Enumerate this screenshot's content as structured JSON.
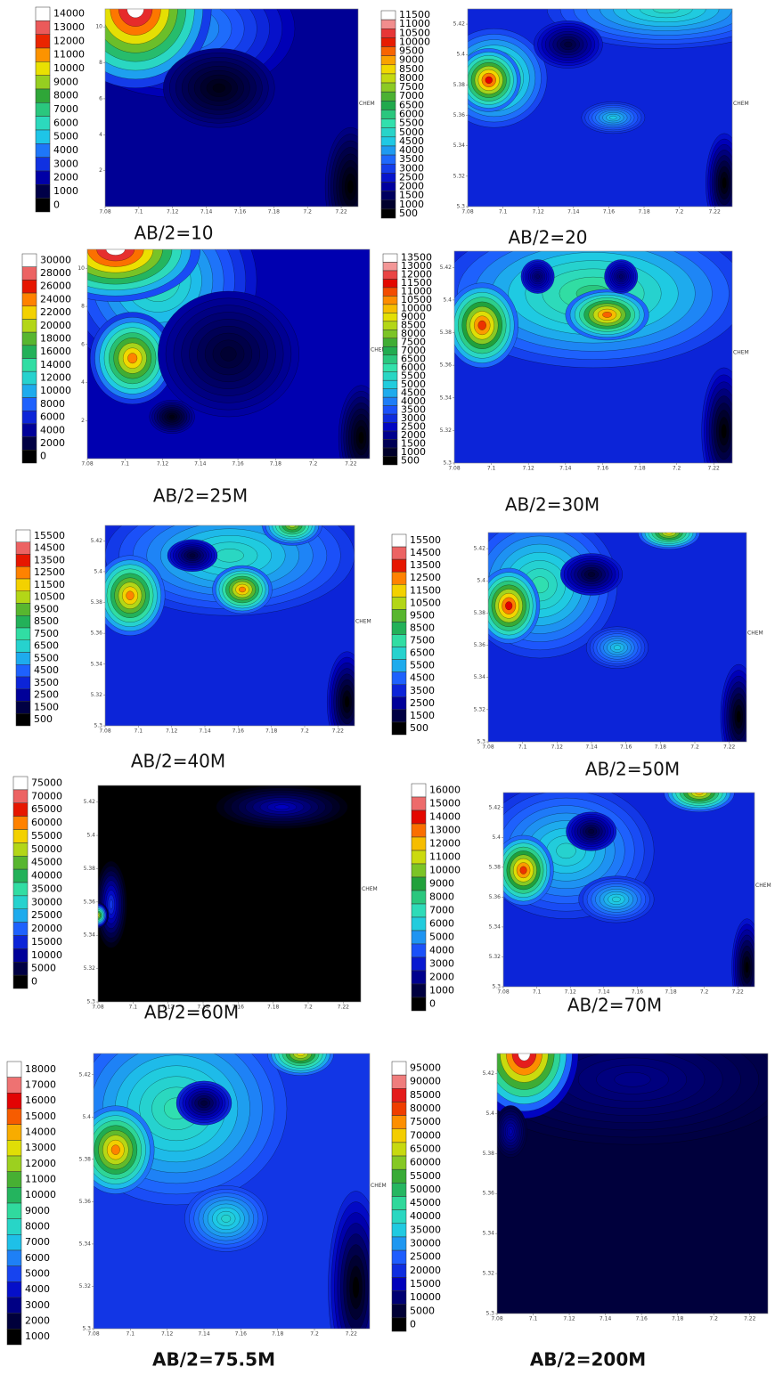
{
  "chart_data": [
    {
      "type": "contour",
      "title": "AB/2=10",
      "levels": [
        14000,
        13000,
        12000,
        11000,
        10000,
        9000,
        8000,
        7000,
        6000,
        5000,
        4000,
        3000,
        2000,
        1000,
        0
      ],
      "xlim": [
        7.08,
        7.23
      ],
      "xticks": [
        7.08,
        7.1,
        7.12,
        7.14,
        7.16,
        7.18,
        7.2,
        7.22
      ],
      "ylim": [
        0,
        11
      ],
      "yticks": [
        2,
        4,
        6,
        8,
        10
      ],
      "annotations": [
        "CHEM"
      ]
    },
    {
      "type": "contour",
      "title": "AB/2=20",
      "levels": [
        11500,
        11000,
        10500,
        10000,
        9500,
        9000,
        8500,
        8000,
        7500,
        7000,
        6500,
        6000,
        5500,
        5000,
        4500,
        4000,
        3500,
        3000,
        2500,
        2000,
        1500,
        1000,
        500
      ],
      "xlim": [
        7.08,
        7.23
      ],
      "xticks": [
        7.08,
        7.1,
        7.12,
        7.14,
        7.16,
        7.18,
        7.2,
        7.22
      ],
      "ylim": [
        5.3,
        5.43
      ],
      "yticks": [
        5.3,
        5.32,
        5.34,
        5.36,
        5.38,
        5.4,
        5.42
      ],
      "annotations": [
        "CHEM"
      ]
    },
    {
      "type": "contour",
      "title": "AB/2=25M",
      "levels": [
        30000,
        28000,
        26000,
        24000,
        22000,
        20000,
        18000,
        16000,
        14000,
        12000,
        10000,
        8000,
        6000,
        4000,
        2000,
        0
      ],
      "xlim": [
        7.08,
        7.23
      ],
      "xticks": [
        7.08,
        7.1,
        7.12,
        7.14,
        7.16,
        7.18,
        7.2,
        7.22
      ],
      "ylim": [
        0,
        11
      ],
      "yticks": [
        2,
        4,
        6,
        8,
        10
      ],
      "annotations": [
        "CHEM"
      ]
    },
    {
      "type": "contour",
      "title": "AB/2=30M",
      "levels": [
        13500,
        13000,
        12000,
        11500,
        11000,
        10500,
        10000,
        9000,
        8500,
        8000,
        7500,
        7000,
        6500,
        6000,
        5500,
        5000,
        4500,
        4000,
        3500,
        3000,
        2500,
        2000,
        1500,
        1000,
        500
      ],
      "xlim": [
        7.08,
        7.23
      ],
      "xticks": [
        7.08,
        7.1,
        7.12,
        7.14,
        7.16,
        7.18,
        7.2,
        7.22
      ],
      "ylim": [
        5.3,
        5.43
      ],
      "yticks": [
        5.3,
        5.32,
        5.34,
        5.36,
        5.38,
        5.4,
        5.42
      ],
      "annotations": [
        "CHEM"
      ]
    },
    {
      "type": "contour",
      "title": "AB/2=40M",
      "levels": [
        15500,
        14500,
        13500,
        12500,
        11500,
        10500,
        9500,
        8500,
        7500,
        6500,
        5500,
        4500,
        3500,
        2500,
        1500,
        500
      ],
      "xlim": [
        7.08,
        7.23
      ],
      "xticks": [
        7.08,
        7.1,
        7.12,
        7.14,
        7.16,
        7.18,
        7.2,
        7.22
      ],
      "ylim": [
        5.3,
        5.43
      ],
      "yticks": [
        5.3,
        5.32,
        5.34,
        5.36,
        5.38,
        5.4,
        5.42
      ],
      "annotations": [
        "CHEM"
      ]
    },
    {
      "type": "contour",
      "title": "AB/2=50M",
      "levels": [
        15500,
        14500,
        13500,
        12500,
        11500,
        10500,
        9500,
        8500,
        7500,
        6500,
        5500,
        4500,
        3500,
        2500,
        1500,
        500
      ],
      "xlim": [
        7.08,
        7.23
      ],
      "xticks": [
        7.08,
        7.1,
        7.12,
        7.14,
        7.16,
        7.18,
        7.2,
        7.22
      ],
      "ylim": [
        5.3,
        5.43
      ],
      "yticks": [
        5.3,
        5.32,
        5.34,
        5.36,
        5.38,
        5.4,
        5.42
      ],
      "annotations": [
        "CHEM"
      ]
    },
    {
      "type": "contour",
      "title": "AB/2=60M",
      "levels": [
        75000,
        70000,
        65000,
        60000,
        55000,
        50000,
        45000,
        40000,
        35000,
        30000,
        25000,
        20000,
        15000,
        10000,
        5000,
        0
      ],
      "xlim": [
        7.08,
        7.23
      ],
      "xticks": [
        7.08,
        7.1,
        7.12,
        7.14,
        7.16,
        7.18,
        7.2,
        7.22
      ],
      "ylim": [
        5.3,
        5.43
      ],
      "yticks": [
        5.3,
        5.32,
        5.34,
        5.36,
        5.38,
        5.4,
        5.42
      ],
      "annotations": [
        "CHEM"
      ]
    },
    {
      "type": "contour",
      "title": "AB/2=70M",
      "levels": [
        16000,
        15000,
        14000,
        13000,
        12000,
        11000,
        10000,
        9000,
        8000,
        7000,
        6000,
        5000,
        4000,
        3000,
        2000,
        1000,
        0
      ],
      "xlim": [
        7.08,
        7.23
      ],
      "xticks": [
        7.08,
        7.1,
        7.12,
        7.14,
        7.16,
        7.18,
        7.2,
        7.22
      ],
      "ylim": [
        5.3,
        5.43
      ],
      "yticks": [
        5.3,
        5.32,
        5.34,
        5.36,
        5.38,
        5.4,
        5.42
      ],
      "annotations": [
        "CHEM"
      ]
    },
    {
      "type": "contour",
      "title": "AB/2=75.5M",
      "levels": [
        18000,
        17000,
        16000,
        15000,
        14000,
        13000,
        12000,
        11000,
        10000,
        9000,
        8000,
        7000,
        6000,
        5000,
        4000,
        3000,
        2000,
        1000
      ],
      "xlim": [
        7.08,
        7.23
      ],
      "xticks": [
        7.08,
        7.1,
        7.12,
        7.14,
        7.16,
        7.18,
        7.2,
        7.22
      ],
      "ylim": [
        5.3,
        5.43
      ],
      "yticks": [
        5.3,
        5.32,
        5.34,
        5.36,
        5.38,
        5.4,
        5.42
      ],
      "annotations": [
        "CHEM"
      ]
    },
    {
      "type": "contour",
      "title": "AB/2=200M",
      "levels": [
        95000,
        90000,
        85000,
        80000,
        75000,
        70000,
        65000,
        60000,
        55000,
        50000,
        45000,
        40000,
        35000,
        30000,
        25000,
        20000,
        15000,
        10000,
        5000,
        0
      ],
      "xlim": [
        7.08,
        7.23
      ],
      "xticks": [
        7.08,
        7.1,
        7.12,
        7.14,
        7.16,
        7.18,
        7.2,
        7.22
      ],
      "ylim": [
        5.3,
        5.43
      ],
      "yticks": [
        5.3,
        5.32,
        5.34,
        5.36,
        5.38,
        5.4,
        5.42
      ]
    }
  ]
}
